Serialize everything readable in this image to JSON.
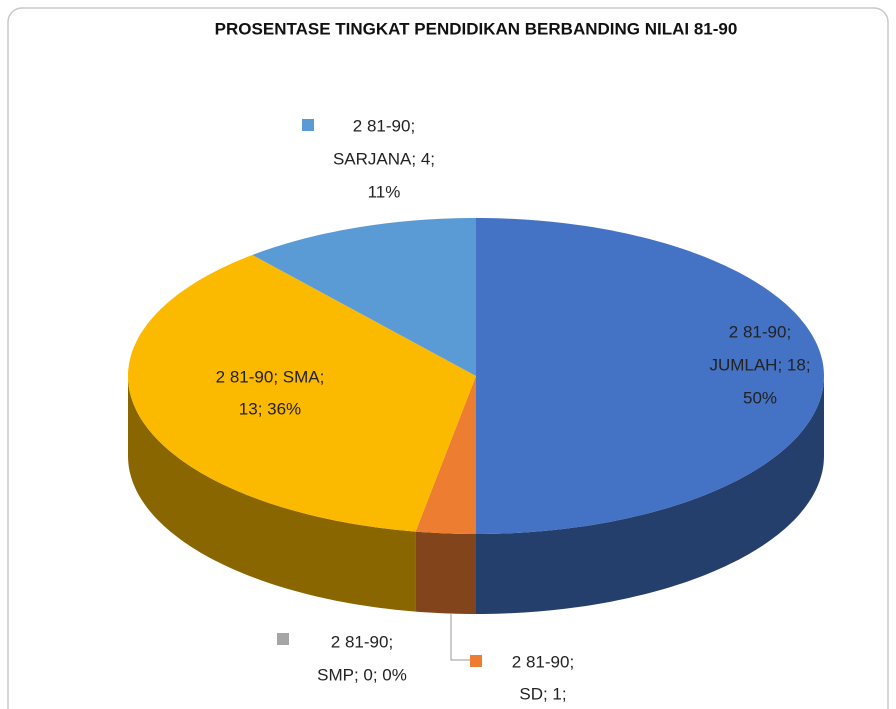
{
  "chart_data": {
    "type": "pie",
    "title": "PROSENTASE TINGKAT PENDIDIKAN BERBANDING NILAI 81-90",
    "categories": [
      "SD",
      "SMP",
      "SMA",
      "SARJANA",
      "JUMLAH"
    ],
    "values": [
      1,
      0,
      13,
      4,
      18
    ],
    "colors": [
      "#ED7D31",
      "#A5A5A5",
      "#FBBA00",
      "#5B9BD5",
      "#4472C4"
    ],
    "value_labels": [
      [
        "2 81-90;",
        "SD; 1;"
      ],
      [
        "2 81-90;",
        "SMP; 0; 0%"
      ],
      [
        "2 81-90; SMA;",
        "13; 36%"
      ],
      [
        "2 81-90;",
        "SARJANA; 4;",
        "11%"
      ],
      [
        "2 81-90;",
        "JUMLAH; 18;",
        "50%"
      ]
    ]
  }
}
